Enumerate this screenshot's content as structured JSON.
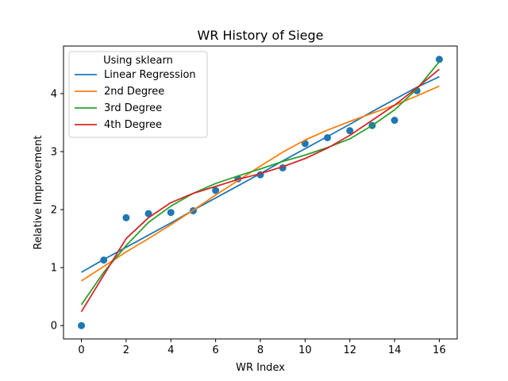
{
  "chart_data": {
    "type": "line",
    "title": "WR History of Siege",
    "xlabel": "WR Index",
    "ylabel": "Relative Improvement",
    "xlim": [
      -0.8,
      16.8
    ],
    "ylim": [
      -0.23,
      4.82
    ],
    "xticks": [
      0,
      2,
      4,
      6,
      8,
      10,
      12,
      14,
      16
    ],
    "yticks": [
      0,
      1,
      2,
      3,
      4
    ],
    "grid": false,
    "legend": {
      "title": "Using sklearn",
      "position": "top-left"
    },
    "scatter": {
      "color": "#1f77b4",
      "x": [
        0,
        1,
        2,
        3,
        4,
        5,
        6,
        7,
        8,
        9,
        10,
        11,
        12,
        13,
        14,
        15,
        16
      ],
      "y": [
        0.0,
        1.13,
        1.86,
        1.93,
        1.95,
        1.98,
        2.33,
        2.53,
        2.6,
        2.72,
        3.14,
        3.24,
        3.36,
        3.45,
        3.54,
        4.05,
        4.59
      ]
    },
    "x": [
      0,
      1,
      2,
      3,
      4,
      5,
      6,
      7,
      8,
      9,
      10,
      11,
      12,
      13,
      14,
      15,
      16
    ],
    "series": [
      {
        "name": "Linear Regression",
        "color": "#1f77b4",
        "values": [
          0.92,
          1.14,
          1.35,
          1.56,
          1.77,
          1.99,
          2.2,
          2.41,
          2.62,
          2.84,
          3.05,
          3.26,
          3.47,
          3.69,
          3.9,
          4.11,
          4.29
        ]
      },
      {
        "name": "2nd Degree",
        "color": "#ff7f0e",
        "values": [
          0.77,
          1.02,
          1.27,
          1.5,
          1.74,
          1.99,
          2.25,
          2.5,
          2.75,
          2.99,
          3.2,
          3.37,
          3.52,
          3.66,
          3.8,
          3.96,
          4.13
        ]
      },
      {
        "name": "3rd Degree",
        "color": "#2ca02c",
        "values": [
          0.36,
          0.92,
          1.38,
          1.78,
          2.06,
          2.28,
          2.45,
          2.58,
          2.7,
          2.83,
          2.94,
          3.07,
          3.22,
          3.45,
          3.72,
          4.08,
          4.55
        ]
      },
      {
        "name": "4th Degree",
        "color": "#d62728",
        "values": [
          0.24,
          0.87,
          1.5,
          1.86,
          2.12,
          2.28,
          2.4,
          2.52,
          2.62,
          2.74,
          2.88,
          3.06,
          3.28,
          3.54,
          3.8,
          4.1,
          4.42
        ]
      }
    ]
  }
}
